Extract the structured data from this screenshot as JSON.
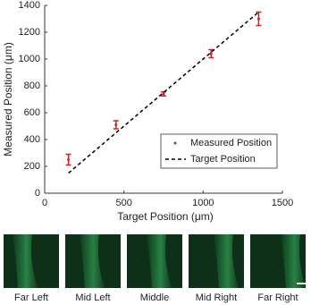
{
  "chart_data": {
    "type": "errorbar",
    "xlabel": "Target Position (μm)",
    "ylabel": "Measured Position (μm)",
    "xlim": [
      0,
      1500
    ],
    "xticks": [
      0,
      500,
      1000,
      1500
    ],
    "ylim": [
      0,
      1400
    ],
    "yticks": [
      0,
      200,
      400,
      600,
      800,
      1000,
      1200,
      1400
    ],
    "legend": "lower right",
    "series": [
      {
        "name": "Measured Position",
        "type": "errorbar",
        "color": "#d62020",
        "x": [
          150,
          450,
          750,
          1050,
          1350
        ],
        "values": [
          250,
          510,
          740,
          1040,
          1300
        ],
        "errors": [
          40,
          30,
          15,
          30,
          50
        ]
      },
      {
        "name": "Target Position",
        "type": "line",
        "color": "#000000",
        "x": [
          150,
          1350
        ],
        "values": [
          150,
          1350
        ]
      }
    ]
  },
  "panels": [
    "Far Left",
    "Mid Left",
    "Middle",
    "Mid Right",
    "Far Right"
  ]
}
